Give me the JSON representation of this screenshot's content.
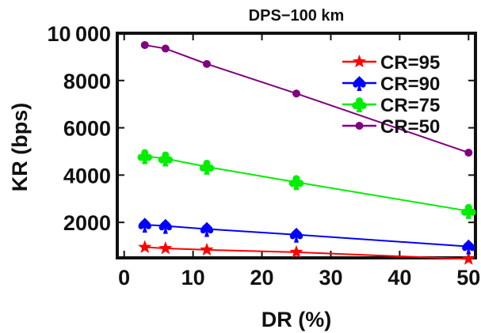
{
  "chart_data": {
    "type": "line",
    "title": "DPS−100 km",
    "xlabel": "DR (%)",
    "ylabel": "KR (bps)",
    "xlim": [
      -1,
      51
    ],
    "ylim": [
      500,
      10000
    ],
    "xticks": [
      0,
      10,
      20,
      30,
      40,
      50
    ],
    "xtick_labels": [
      "0",
      "10",
      "20",
      "30",
      "40",
      "50"
    ],
    "yticks": [
      2000,
      4000,
      6000,
      8000,
      10000
    ],
    "ytick_labels": [
      "2000",
      "4000",
      "6000",
      "8000",
      "10 000"
    ],
    "x": [
      3,
      6,
      12,
      25,
      50
    ],
    "series": [
      {
        "name": "CR=95",
        "marker": "star",
        "color": "#ff0000",
        "values": [
          950,
          900,
          840,
          740,
          450
        ]
      },
      {
        "name": "CR=90",
        "marker": "spade",
        "color": "#0000ff",
        "values": [
          1900,
          1850,
          1720,
          1480,
          980
        ]
      },
      {
        "name": "CR=75",
        "marker": "club",
        "color": "#00ee00",
        "values": [
          4800,
          4700,
          4350,
          3700,
          2480
        ]
      },
      {
        "name": "CR=50",
        "marker": "dot",
        "color": "#800080",
        "values": [
          9500,
          9350,
          8700,
          7450,
          4950
        ]
      }
    ],
    "legend": "top-right",
    "grid": false
  }
}
